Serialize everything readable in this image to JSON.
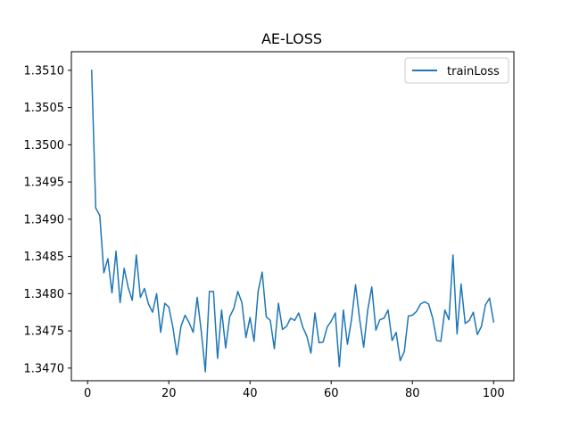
{
  "chart_data": {
    "type": "line",
    "title": "AE-LOSS",
    "xlabel": "",
    "ylabel": "",
    "xlim": [
      -4,
      105
    ],
    "ylim": [
      1.34683,
      1.35125
    ],
    "xticks": [
      0,
      20,
      40,
      60,
      80,
      100
    ],
    "yticks": [
      1.347,
      1.3475,
      1.348,
      1.3485,
      1.349,
      1.3495,
      1.35,
      1.3505,
      1.351
    ],
    "xtick_labels": [
      "0",
      "20",
      "40",
      "60",
      "80",
      "100"
    ],
    "ytick_labels": [
      "1.3470",
      "1.3475",
      "1.3480",
      "1.3485",
      "1.3490",
      "1.3495",
      "1.3500",
      "1.3505",
      "1.3510"
    ],
    "grid": false,
    "legend_position": "top-right",
    "series": [
      {
        "name": "trainLoss",
        "color": "#1f77b4",
        "x": [
          1,
          2,
          3,
          4,
          5,
          6,
          7,
          8,
          9,
          10,
          11,
          12,
          13,
          14,
          15,
          16,
          17,
          18,
          19,
          20,
          21,
          22,
          23,
          24,
          25,
          26,
          27,
          28,
          29,
          30,
          31,
          32,
          33,
          34,
          35,
          36,
          37,
          38,
          39,
          40,
          41,
          42,
          43,
          44,
          45,
          46,
          47,
          48,
          49,
          50,
          51,
          52,
          53,
          54,
          55,
          56,
          57,
          58,
          59,
          60,
          61,
          62,
          63,
          64,
          65,
          66,
          67,
          68,
          69,
          70,
          71,
          72,
          73,
          74,
          75,
          76,
          77,
          78,
          79,
          80,
          81,
          82,
          83,
          84,
          85,
          86,
          87,
          88,
          89,
          90,
          91,
          92,
          93,
          94,
          95,
          96,
          97,
          98,
          99,
          100
        ],
        "values": [
          1.351,
          1.34915,
          1.34905,
          1.34828,
          1.34847,
          1.34801,
          1.34857,
          1.34788,
          1.34834,
          1.34808,
          1.34791,
          1.34852,
          1.34795,
          1.34807,
          1.34786,
          1.34775,
          1.348,
          1.34748,
          1.34787,
          1.34782,
          1.34755,
          1.34718,
          1.34756,
          1.34771,
          1.34761,
          1.34748,
          1.34795,
          1.34749,
          1.34695,
          1.34803,
          1.34803,
          1.34713,
          1.34778,
          1.34727,
          1.34769,
          1.3478,
          1.34803,
          1.34788,
          1.34741,
          1.34768,
          1.34736,
          1.34803,
          1.34829,
          1.34769,
          1.34764,
          1.34726,
          1.34787,
          1.34752,
          1.34756,
          1.34767,
          1.34764,
          1.34774,
          1.34755,
          1.34743,
          1.3472,
          1.34774,
          1.34734,
          1.34735,
          1.34755,
          1.34763,
          1.34774,
          1.34702,
          1.34778,
          1.34732,
          1.34765,
          1.34812,
          1.34766,
          1.34728,
          1.34778,
          1.34809,
          1.34751,
          1.34765,
          1.34767,
          1.34778,
          1.34737,
          1.34748,
          1.3471,
          1.34722,
          1.3477,
          1.34771,
          1.34776,
          1.34786,
          1.34789,
          1.34786,
          1.34767,
          1.34737,
          1.34736,
          1.34778,
          1.34765,
          1.34852,
          1.34746,
          1.34813,
          1.3476,
          1.34764,
          1.34775,
          1.34745,
          1.34756,
          1.34785,
          1.34794,
          1.34762
        ]
      }
    ]
  }
}
